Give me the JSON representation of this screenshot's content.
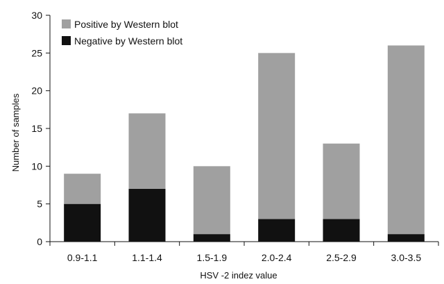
{
  "chart_data": {
    "type": "bar",
    "stacked": true,
    "categories": [
      "0.9-1.1",
      "1.1-1.4",
      "1.5-1.9",
      "2.0-2.4",
      "2.5-2.9",
      "3.0-3.5"
    ],
    "series": [
      {
        "name": "Negative by Western blot",
        "values": [
          5,
          7,
          1,
          3,
          3,
          1
        ],
        "color": "#111111"
      },
      {
        "name": "Positive by Western blot",
        "values": [
          4,
          10,
          9,
          22,
          10,
          25
        ],
        "color": "#a0a0a0"
      }
    ],
    "legend_order": [
      1,
      0
    ],
    "legend_position": "top-left",
    "xlabel": "HSV -2 indez value",
    "ylabel": "Number of samples",
    "ylim": [
      0,
      30
    ],
    "yticks": [
      0,
      5,
      10,
      15,
      20,
      25,
      30
    ],
    "grid": false
  }
}
